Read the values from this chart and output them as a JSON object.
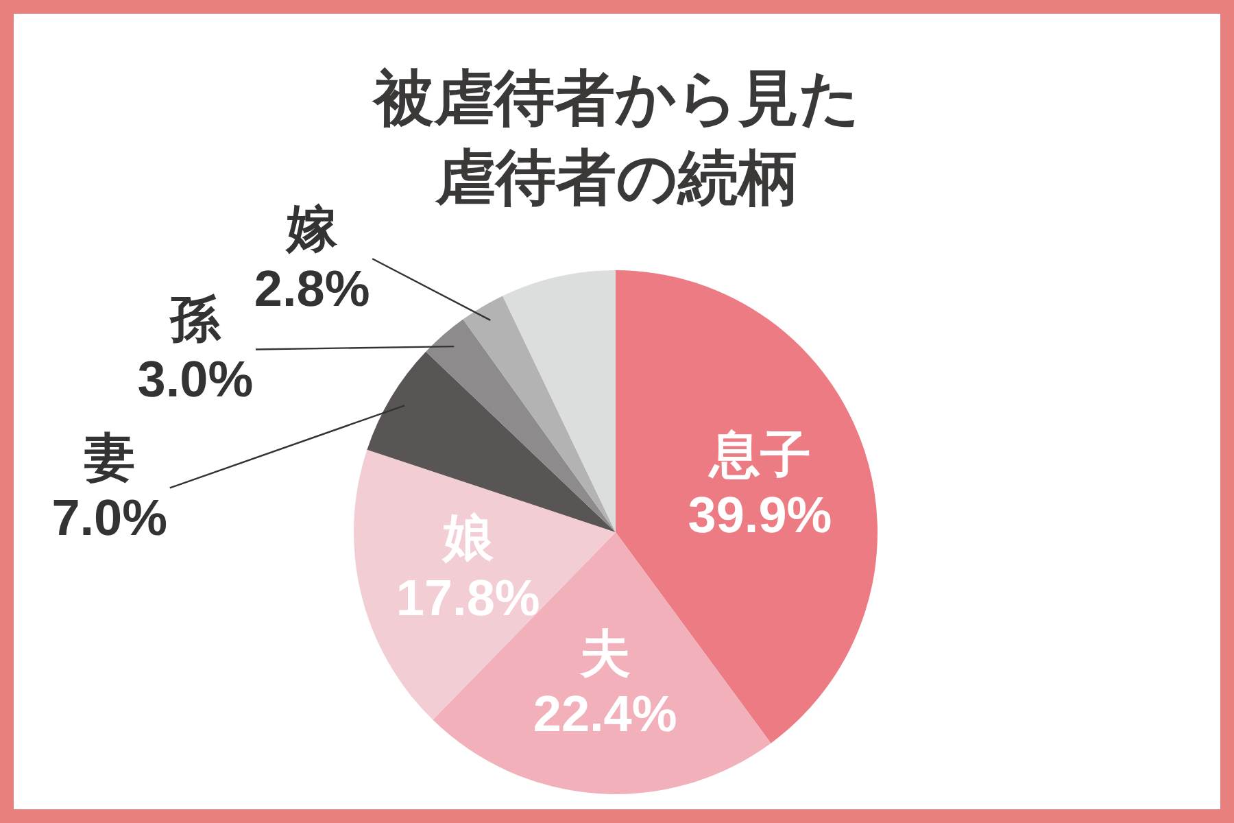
{
  "chart_data": {
    "type": "pie",
    "title": "被虐待者から見た虐待者の続柄",
    "categories": [
      "息子",
      "夫",
      "娘",
      "妻",
      "孫",
      "嫁",
      null
    ],
    "values": [
      39.9,
      22.4,
      17.8,
      7.0,
      3.0,
      2.8,
      7.1
    ],
    "colors": [
      "#ec7b84",
      "#f2b0ba",
      "#f2cdd3",
      "#595555",
      "#8d8b8b",
      "#b4b3b3",
      "#dcdddd"
    ],
    "value_labels": [
      "39.9%",
      "22.4%",
      "17.8%",
      "7.0%",
      "3.0%",
      "2.8%",
      null
    ]
  }
}
